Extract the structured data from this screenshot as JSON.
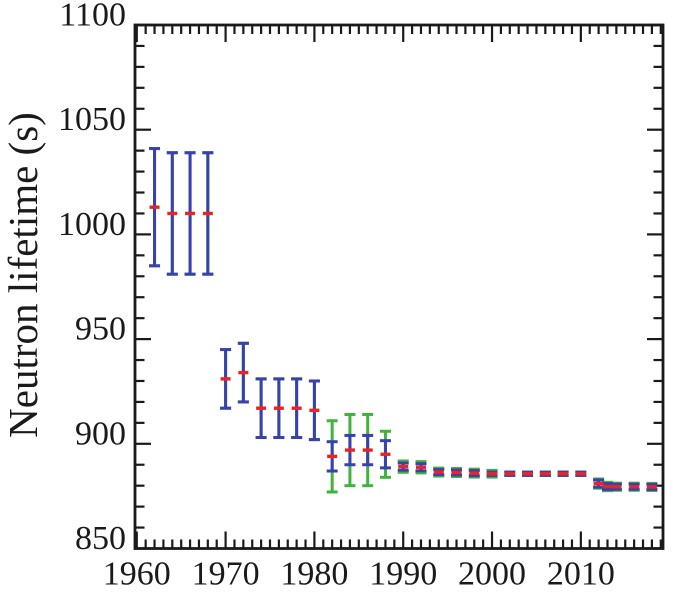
{
  "chart_data": {
    "type": "scatter",
    "subtype": "errorbar-time-series",
    "title": "",
    "xlabel": "",
    "ylabel": "Neutron lifetime (s)",
    "xlim": [
      1959.8,
      2019.25
    ],
    "ylim": [
      850,
      1100
    ],
    "grid": false,
    "legend": "none",
    "x_major_ticks": [
      1960,
      1970,
      1980,
      1990,
      2000,
      2010
    ],
    "x_minor_step_years": 1,
    "y_major_ticks": [
      850,
      900,
      950,
      1000,
      1050,
      1100
    ],
    "y_minor_step": 10,
    "colors": {
      "background": "#ffffff",
      "axis": "#1a1a1a",
      "center_marker": "#ee2320",
      "inner_error_bar": "#3a40af",
      "outer_error_bar": "#3fb43c"
    },
    "points": [
      {
        "year": 1962,
        "value": 1013,
        "inner_err": 28,
        "outer_err": 28
      },
      {
        "year": 1964,
        "value": 1010,
        "inner_err": 29,
        "outer_err": 29
      },
      {
        "year": 1966,
        "value": 1010,
        "inner_err": 29,
        "outer_err": 29
      },
      {
        "year": 1968,
        "value": 1010,
        "inner_err": 29,
        "outer_err": 29
      },
      {
        "year": 1970,
        "value": 931,
        "inner_err": 14,
        "outer_err": 14
      },
      {
        "year": 1972,
        "value": 934,
        "inner_err": 14,
        "outer_err": 14
      },
      {
        "year": 1974,
        "value": 917,
        "inner_err": 14,
        "outer_err": 14
      },
      {
        "year": 1976,
        "value": 917,
        "inner_err": 14,
        "outer_err": 14
      },
      {
        "year": 1978,
        "value": 917,
        "inner_err": 14,
        "outer_err": 14
      },
      {
        "year": 1980,
        "value": 916,
        "inner_err": 14,
        "outer_err": 14
      },
      {
        "year": 1982,
        "value": 894,
        "inner_err": 7,
        "outer_err": 17
      },
      {
        "year": 1984,
        "value": 897,
        "inner_err": 7,
        "outer_err": 17
      },
      {
        "year": 1986,
        "value": 897,
        "inner_err": 7,
        "outer_err": 17
      },
      {
        "year": 1988,
        "value": 895,
        "inner_err": 6.5,
        "outer_err": 11
      },
      {
        "year": 1990,
        "value": 889.1,
        "inner_err": 1.7,
        "outer_err": 2.7
      },
      {
        "year": 1992,
        "value": 888.8,
        "inner_err": 1.7,
        "outer_err": 2.7
      },
      {
        "year": 1994,
        "value": 886.5,
        "inner_err": 1.2,
        "outer_err": 1.9
      },
      {
        "year": 1996,
        "value": 886.3,
        "inner_err": 1.2,
        "outer_err": 1.9
      },
      {
        "year": 1998,
        "value": 886.0,
        "inner_err": 1.2,
        "outer_err": 1.9
      },
      {
        "year": 2000,
        "value": 885.7,
        "inner_err": 0.8,
        "outer_err": 1.6
      },
      {
        "year": 2002,
        "value": 885.7,
        "inner_err": 0.8,
        "outer_err": 0.8
      },
      {
        "year": 2004,
        "value": 885.7,
        "inner_err": 0.8,
        "outer_err": 0.8
      },
      {
        "year": 2006,
        "value": 885.7,
        "inner_err": 0.8,
        "outer_err": 0.8
      },
      {
        "year": 2008,
        "value": 885.7,
        "inner_err": 0.8,
        "outer_err": 0.8
      },
      {
        "year": 2010,
        "value": 885.7,
        "inner_err": 0.8,
        "outer_err": 0.8
      },
      {
        "year": 2012,
        "value": 881.0,
        "inner_err": 1.7,
        "outer_err": 2.2
      },
      {
        "year": 2013,
        "value": 879.6,
        "inner_err": 1.4,
        "outer_err": 2.0
      },
      {
        "year": 2014,
        "value": 879.5,
        "inner_err": 1.2,
        "outer_err": 1.7
      },
      {
        "year": 2016,
        "value": 879.5,
        "inner_err": 1.2,
        "outer_err": 1.7
      },
      {
        "year": 2018,
        "value": 879.4,
        "inner_err": 1.2,
        "outer_err": 1.7
      }
    ]
  }
}
